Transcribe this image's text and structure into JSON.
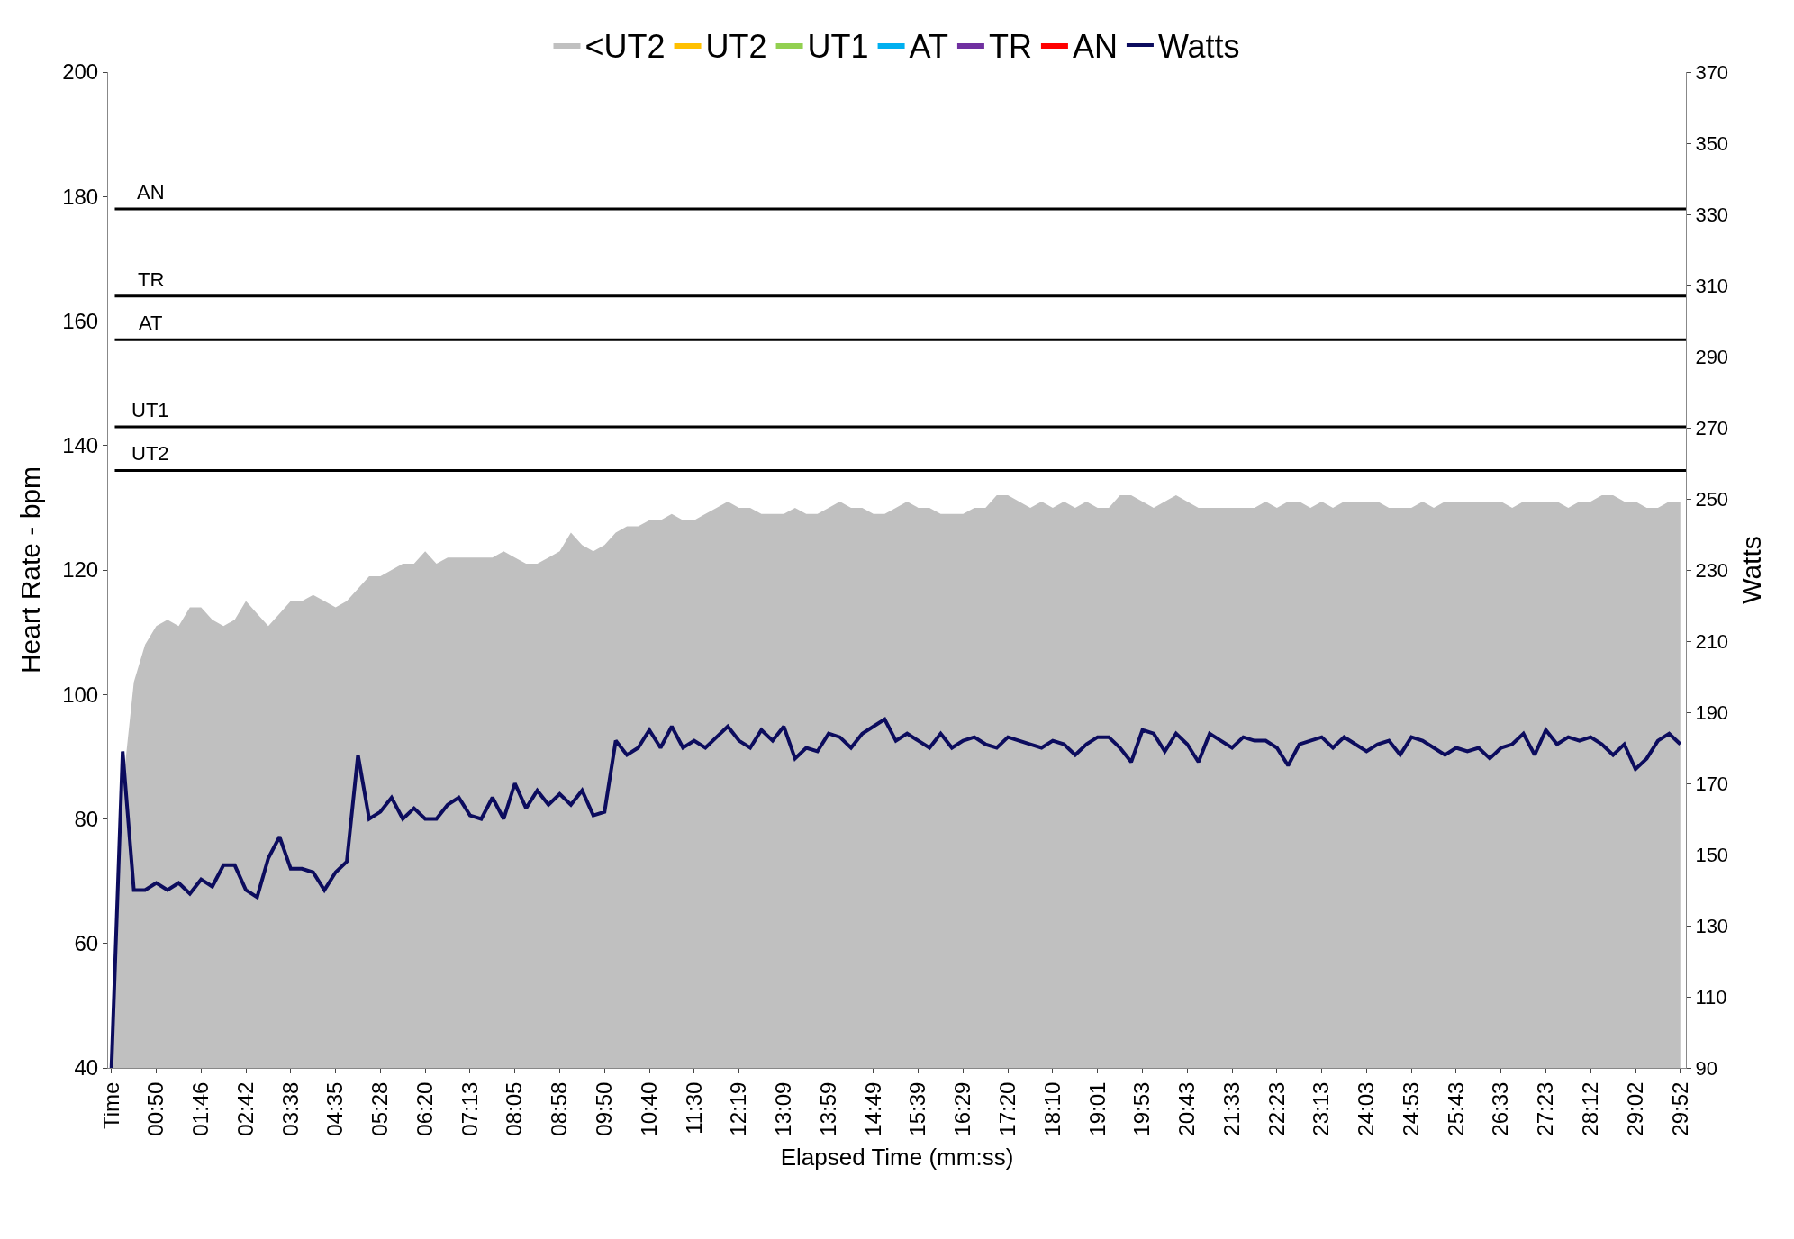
{
  "chart_data": {
    "type": "area",
    "xlabel": "Elapsed Time (mm:ss)",
    "ylabel": "Heart Rate - bpm",
    "y2label": "Watts",
    "categories": [
      "Time",
      null,
      null,
      null,
      "00:50",
      null,
      null,
      null,
      "01:46",
      null,
      null,
      null,
      "02:42",
      null,
      null,
      null,
      "03:38",
      null,
      null,
      null,
      "04:35",
      null,
      null,
      null,
      "05:28",
      null,
      null,
      null,
      "06:20",
      null,
      null,
      null,
      "07:13",
      null,
      null,
      null,
      "08:05",
      null,
      null,
      null,
      "08:58",
      null,
      null,
      null,
      "09:50",
      null,
      null,
      null,
      "10:40",
      null,
      null,
      null,
      "11:30",
      null,
      null,
      null,
      "12:19",
      null,
      null,
      null,
      "13:09",
      null,
      null,
      null,
      "13:59",
      null,
      null,
      null,
      "14:49",
      null,
      null,
      null,
      "15:39",
      null,
      null,
      null,
      "16:29",
      null,
      null,
      null,
      "17:20",
      null,
      null,
      null,
      "18:10",
      null,
      null,
      null,
      "19:01",
      null,
      null,
      null,
      "19:53",
      null,
      null,
      null,
      "20:43",
      null,
      null,
      null,
      "21:33",
      null,
      null,
      null,
      "22:23",
      null,
      null,
      null,
      "23:13",
      null,
      null,
      null,
      "24:03",
      null,
      null,
      null,
      "24:53",
      null,
      null,
      null,
      "25:43",
      null,
      null,
      null,
      "26:33",
      null,
      null,
      null,
      "27:23",
      null,
      null,
      null,
      "28:12",
      null,
      null,
      null,
      "29:02",
      null,
      null,
      null,
      "29:52"
    ],
    "series": [
      {
        "name": "<UT2",
        "color": "#c0c0c0",
        "values": [
          40,
          85,
          102,
          108,
          111,
          112,
          111,
          114,
          114,
          112,
          111,
          112,
          115,
          113,
          111,
          113,
          115,
          115,
          116,
          115,
          114,
          115,
          117,
          119,
          119,
          120,
          121,
          121,
          123,
          121,
          122,
          122,
          122,
          122,
          122,
          123,
          122,
          121,
          121,
          122,
          123,
          126,
          124,
          123,
          124,
          126,
          127,
          127,
          128,
          128,
          129,
          128,
          128,
          129,
          130,
          131,
          130,
          130,
          129,
          129,
          129,
          130,
          129,
          129,
          130,
          131,
          130,
          130,
          129,
          129,
          130,
          131,
          130,
          130,
          129,
          129,
          129,
          130,
          130,
          132,
          132,
          131,
          130,
          131,
          130,
          131,
          130,
          131,
          130,
          130,
          132,
          132,
          131,
          130,
          131,
          132,
          131,
          130,
          130,
          130,
          130,
          130,
          130,
          131,
          130,
          131,
          131,
          130,
          131,
          130,
          131,
          131,
          131,
          131,
          130,
          130,
          130,
          131,
          130,
          131,
          131,
          131,
          131,
          131,
          131,
          130,
          131,
          131,
          131,
          131,
          130,
          131,
          131,
          132,
          132,
          131,
          131,
          130,
          130,
          131,
          131
        ]
      },
      {
        "name": "UT2",
        "color": "#ffc000",
        "values": [
          null,
          null,
          null,
          null,
          null,
          null,
          null,
          null,
          null,
          null,
          null,
          null,
          null,
          null,
          null,
          null,
          null,
          null,
          null,
          null,
          null,
          null,
          null,
          null,
          null,
          null,
          null,
          null,
          null,
          null,
          null,
          null,
          null,
          null,
          null,
          null,
          null,
          null,
          null,
          null,
          null,
          null,
          null,
          null,
          null,
          null,
          null,
          null,
          null,
          null,
          null,
          null,
          null,
          null,
          null,
          null,
          null,
          null,
          null,
          null,
          null,
          null,
          null,
          null,
          null,
          null,
          null,
          null,
          null,
          null,
          null,
          null,
          null,
          null,
          null,
          null,
          null,
          null,
          null,
          null,
          null,
          null,
          null,
          null,
          null,
          null,
          null,
          null,
          null,
          null,
          null,
          null,
          null,
          null,
          null,
          null,
          null,
          null,
          null,
          null,
          null,
          null,
          null,
          null,
          null,
          null,
          null,
          null,
          null,
          null,
          null,
          null,
          null,
          null,
          null,
          null,
          null,
          null,
          null,
          null,
          null,
          null,
          null,
          null,
          null,
          null,
          null,
          null,
          null,
          null,
          null,
          null,
          null,
          null,
          null,
          null,
          null,
          null,
          null,
          null,
          null
        ]
      },
      {
        "name": "UT1",
        "color": "#92d050",
        "values": [
          null,
          null,
          null,
          null,
          null,
          null,
          null,
          null,
          null,
          null,
          null,
          null,
          null,
          null,
          null,
          null,
          null,
          null,
          null,
          null,
          null,
          null,
          null,
          null,
          null,
          null,
          null,
          null,
          null,
          null,
          null,
          null,
          null,
          null,
          null,
          null,
          null,
          null,
          null,
          null,
          null,
          null,
          null,
          null,
          null,
          null,
          null,
          null,
          null,
          null,
          null,
          null,
          null,
          null,
          null,
          null,
          null,
          null,
          null,
          null,
          null,
          null,
          null,
          null,
          null,
          null,
          null,
          null,
          null,
          null,
          null,
          null,
          null,
          null,
          null,
          null,
          null,
          null,
          null,
          null,
          null,
          null,
          null,
          null,
          null,
          null,
          null,
          null,
          null,
          null,
          null,
          null,
          null,
          null,
          null,
          null,
          null,
          null,
          null,
          null,
          null,
          null,
          null,
          null,
          null,
          null,
          null,
          null,
          null,
          null,
          null,
          null,
          null,
          null,
          null,
          null,
          null,
          null,
          null,
          null,
          null,
          null,
          null,
          null,
          null,
          null,
          null,
          null,
          null,
          null,
          null,
          null,
          null,
          null,
          null,
          null,
          null,
          null,
          null,
          null,
          null
        ]
      },
      {
        "name": "AT",
        "color": "#00b0f0",
        "values": [
          null,
          null,
          null,
          null,
          null,
          null,
          null,
          null,
          null,
          null,
          null,
          null,
          null,
          null,
          null,
          null,
          null,
          null,
          null,
          null,
          null,
          null,
          null,
          null,
          null,
          null,
          null,
          null,
          null,
          null,
          null,
          null,
          null,
          null,
          null,
          null,
          null,
          null,
          null,
          null,
          null,
          null,
          null,
          null,
          null,
          null,
          null,
          null,
          null,
          null,
          null,
          null,
          null,
          null,
          null,
          null,
          null,
          null,
          null,
          null,
          null,
          null,
          null,
          null,
          null,
          null,
          null,
          null,
          null,
          null,
          null,
          null,
          null,
          null,
          null,
          null,
          null,
          null,
          null,
          null,
          null,
          null,
          null,
          null,
          null,
          null,
          null,
          null,
          null,
          null,
          null,
          null,
          null,
          null,
          null,
          null,
          null,
          null,
          null,
          null,
          null,
          null,
          null,
          null,
          null,
          null,
          null,
          null,
          null,
          null,
          null,
          null,
          null,
          null,
          null,
          null,
          null,
          null,
          null,
          null,
          null,
          null,
          null,
          null,
          null,
          null,
          null,
          null,
          null,
          null,
          null,
          null,
          null,
          null,
          null,
          null,
          null,
          null,
          null,
          null,
          null
        ]
      },
      {
        "name": "TR",
        "color": "#7030a0",
        "values": [
          null,
          null,
          null,
          null,
          null,
          null,
          null,
          null,
          null,
          null,
          null,
          null,
          null,
          null,
          null,
          null,
          null,
          null,
          null,
          null,
          null,
          null,
          null,
          null,
          null,
          null,
          null,
          null,
          null,
          null,
          null,
          null,
          null,
          null,
          null,
          null,
          null,
          null,
          null,
          null,
          null,
          null,
          null,
          null,
          null,
          null,
          null,
          null,
          null,
          null,
          null,
          null,
          null,
          null,
          null,
          null,
          null,
          null,
          null,
          null,
          null,
          null,
          null,
          null,
          null,
          null,
          null,
          null,
          null,
          null,
          null,
          null,
          null,
          null,
          null,
          null,
          null,
          null,
          null,
          null,
          null,
          null,
          null,
          null,
          null,
          null,
          null,
          null,
          null,
          null,
          null,
          null,
          null,
          null,
          null,
          null,
          null,
          null,
          null,
          null,
          null,
          null,
          null,
          null,
          null,
          null,
          null,
          null,
          null,
          null,
          null,
          null,
          null,
          null,
          null,
          null,
          null,
          null,
          null,
          null,
          null,
          null,
          null,
          null,
          null,
          null,
          null,
          null,
          null,
          null,
          null,
          null,
          null,
          null,
          null,
          null,
          null,
          null,
          null,
          null,
          null
        ]
      },
      {
        "name": "AN",
        "color": "#ff0000",
        "values": [
          null,
          null,
          null,
          null,
          null,
          null,
          null,
          null,
          null,
          null,
          null,
          null,
          null,
          null,
          null,
          null,
          null,
          null,
          null,
          null,
          null,
          null,
          null,
          null,
          null,
          null,
          null,
          null,
          null,
          null,
          null,
          null,
          null,
          null,
          null,
          null,
          null,
          null,
          null,
          null,
          null,
          null,
          null,
          null,
          null,
          null,
          null,
          null,
          null,
          null,
          null,
          null,
          null,
          null,
          null,
          null,
          null,
          null,
          null,
          null,
          null,
          null,
          null,
          null,
          null,
          null,
          null,
          null,
          null,
          null,
          null,
          null,
          null,
          null,
          null,
          null,
          null,
          null,
          null,
          null,
          null,
          null,
          null,
          null,
          null,
          null,
          null,
          null,
          null,
          null,
          null,
          null,
          null,
          null,
          null,
          null,
          null,
          null,
          null,
          null,
          null,
          null,
          null,
          null,
          null,
          null,
          null,
          null,
          null,
          null,
          null,
          null,
          null,
          null,
          null,
          null,
          null,
          null,
          null,
          null,
          null,
          null,
          null,
          null,
          null,
          null,
          null,
          null,
          null,
          null,
          null,
          null,
          null,
          null,
          null,
          null,
          null,
          null,
          null,
          null,
          null
        ]
      },
      {
        "name": "Watts",
        "color": "#0c0c5e",
        "type": "line",
        "axis": "y2",
        "values": [
          90,
          179,
          140,
          140,
          142,
          140,
          142,
          139,
          143,
          141,
          147,
          147,
          140,
          138,
          149,
          155,
          146,
          146,
          145,
          140,
          145,
          148,
          178,
          160,
          162,
          166,
          160,
          163,
          160,
          160,
          164,
          166,
          161,
          160,
          166,
          160,
          170,
          163,
          168,
          164,
          167,
          164,
          168,
          161,
          162,
          182,
          178,
          180,
          185,
          180,
          186,
          180,
          182,
          180,
          183,
          186,
          182,
          180,
          185,
          182,
          186,
          177,
          180,
          179,
          184,
          183,
          180,
          184,
          186,
          188,
          182,
          184,
          182,
          180,
          184,
          180,
          182,
          183,
          181,
          180,
          183,
          182,
          181,
          180,
          182,
          181,
          178,
          181,
          183,
          183,
          180,
          176,
          185,
          184,
          179,
          184,
          181,
          176,
          184,
          182,
          180,
          183,
          182,
          182,
          180,
          175,
          181,
          182,
          183,
          180,
          183,
          181,
          179,
          181,
          182,
          178,
          183,
          182,
          180,
          178,
          180,
          179,
          180,
          177,
          180,
          181,
          184,
          178,
          185,
          181,
          183,
          182,
          183,
          181,
          178,
          181,
          174,
          177,
          182,
          184,
          181
        ]
      }
    ],
    "ylim": [
      40,
      200
    ],
    "yticks": [
      40,
      60,
      80,
      100,
      120,
      140,
      160,
      180,
      200
    ],
    "y2lim": [
      90,
      370
    ],
    "y2ticks": [
      90,
      110,
      130,
      150,
      170,
      190,
      210,
      230,
      250,
      270,
      290,
      310,
      330,
      350,
      370
    ],
    "ref_lines": [
      {
        "axis": "y",
        "value": 136,
        "label": "UT2",
        "color": "#000000"
      },
      {
        "axis": "y",
        "value": 143,
        "label": "UT1",
        "color": "#000000"
      },
      {
        "axis": "y",
        "value": 157,
        "label": "AT",
        "color": "#000000"
      },
      {
        "axis": "y",
        "value": 164,
        "label": "TR",
        "color": "#000000"
      },
      {
        "axis": "y",
        "value": 178,
        "label": "AN",
        "color": "#000000"
      }
    ],
    "legend": "top"
  }
}
